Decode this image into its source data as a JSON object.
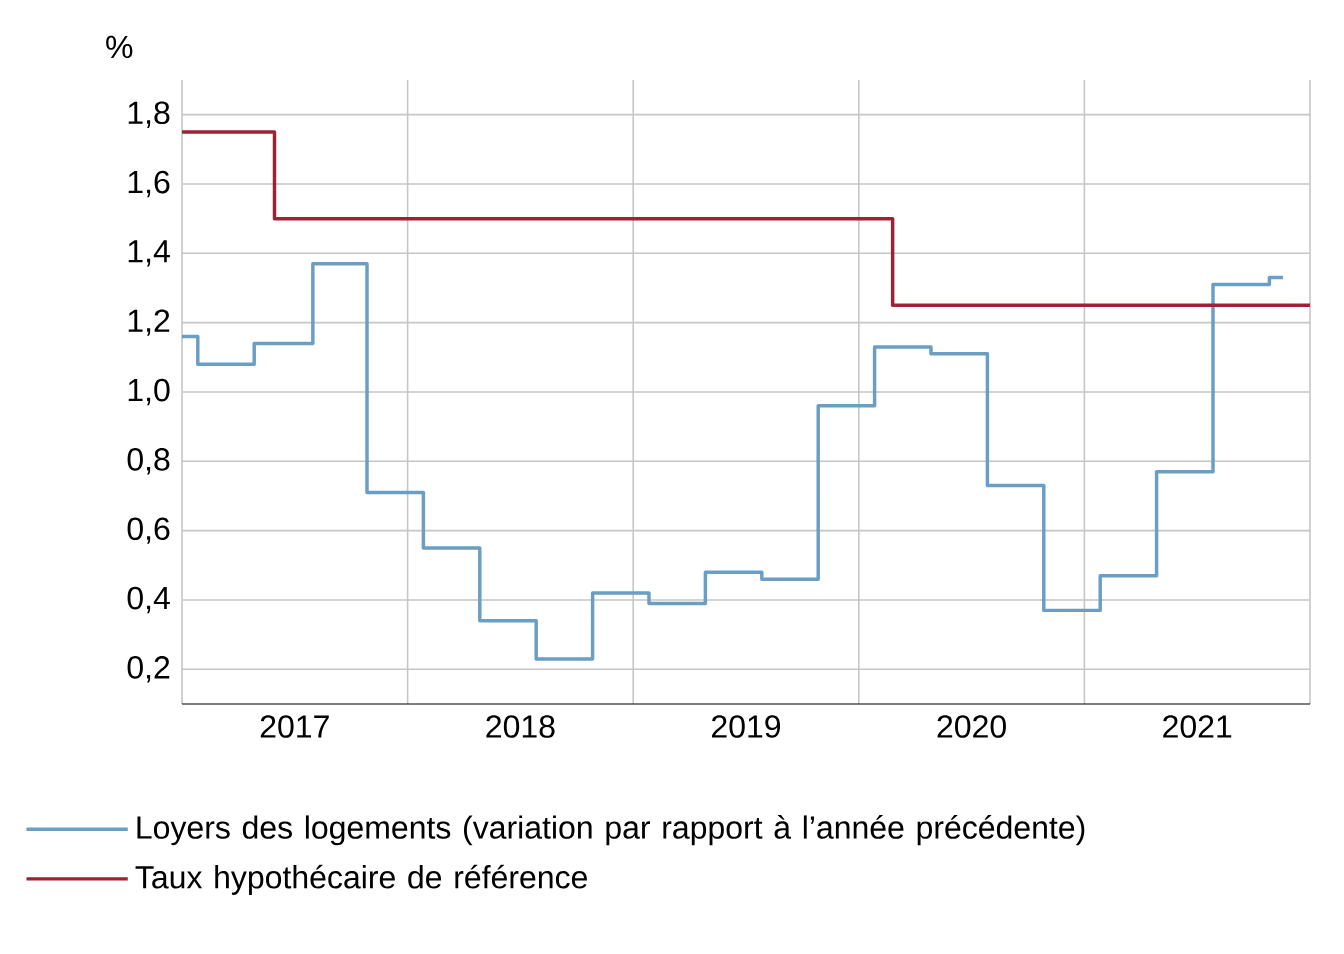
{
  "chart_data": {
    "type": "step",
    "ylabel": "%",
    "xlim": [
      2017,
      2022
    ],
    "ylim": [
      0.1,
      1.9
    ],
    "xticks": [
      {
        "value": 2017,
        "label": null
      },
      {
        "value": 2017.5,
        "label": "2017"
      },
      {
        "value": 2018,
        "label": null
      },
      {
        "value": 2018.5,
        "label": "2018"
      },
      {
        "value": 2019,
        "label": null
      },
      {
        "value": 2019.5,
        "label": "2019"
      },
      {
        "value": 2020,
        "label": null
      },
      {
        "value": 2020.5,
        "label": "2020"
      },
      {
        "value": 2021,
        "label": null
      },
      {
        "value": 2021.5,
        "label": "2021"
      },
      {
        "value": 2022,
        "label": null
      }
    ],
    "yticks": [
      {
        "value": 0.2,
        "label": "0,2"
      },
      {
        "value": 0.4,
        "label": "0,4"
      },
      {
        "value": 0.6,
        "label": "0,6"
      },
      {
        "value": 0.8,
        "label": "0,8"
      },
      {
        "value": 1.0,
        "label": "1,0"
      },
      {
        "value": 1.2,
        "label": "1,2"
      },
      {
        "value": 1.4,
        "label": "1,4"
      },
      {
        "value": 1.6,
        "label": "1,6"
      },
      {
        "value": 1.8,
        "label": "1,8"
      }
    ],
    "grid": true,
    "legend": "bottom",
    "series": [
      {
        "name": "Loyers des logements (variation par rapport à l’année précédente)",
        "color": "#6a9ec5",
        "x": [
          2017.0,
          2017.07,
          2017.32,
          2017.58,
          2017.82,
          2018.07,
          2018.32,
          2018.57,
          2018.82,
          2019.07,
          2019.32,
          2019.57,
          2019.82,
          2020.07,
          2020.32,
          2020.57,
          2020.82,
          2021.07,
          2021.32,
          2021.57,
          2021.82,
          2021.88
        ],
        "values": [
          1.16,
          1.08,
          1.14,
          1.37,
          0.71,
          0.55,
          0.34,
          0.23,
          0.42,
          0.39,
          0.48,
          0.46,
          0.96,
          1.13,
          1.11,
          0.73,
          0.37,
          0.47,
          0.77,
          1.31,
          1.33,
          1.33
        ]
      },
      {
        "name": "Taux hypothécaire de référence",
        "color": "#9b2335",
        "x": [
          2017.0,
          2017.41,
          2020.15,
          2022.0
        ],
        "values": [
          1.75,
          1.5,
          1.25,
          1.25
        ]
      }
    ]
  }
}
